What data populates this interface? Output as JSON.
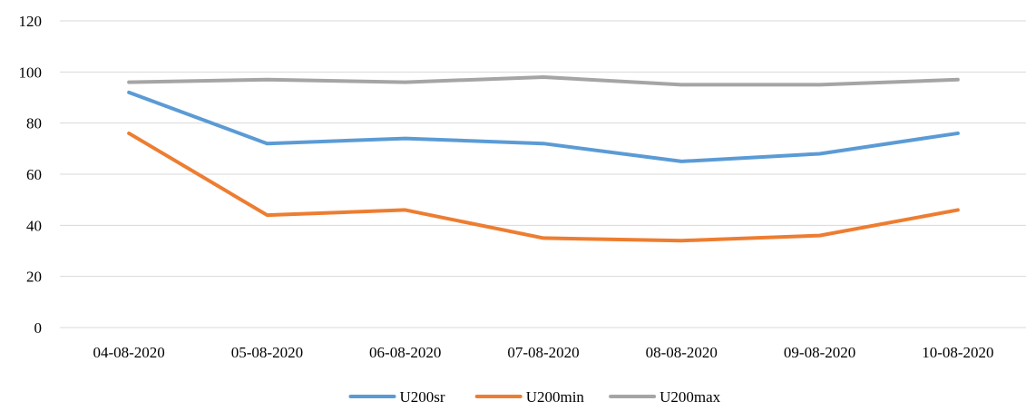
{
  "chart_data": {
    "type": "line",
    "title": "",
    "xlabel": "",
    "ylabel": "",
    "categories": [
      "04-08-2020",
      "05-08-2020",
      "06-08-2020",
      "07-08-2020",
      "08-08-2020",
      "09-08-2020",
      "10-08-2020"
    ],
    "ylim": [
      0,
      120
    ],
    "yticks": [
      "0",
      "20",
      "40",
      "60",
      "80",
      "100",
      "120"
    ],
    "grid": true,
    "legend_position": "bottom",
    "series": [
      {
        "name": "U200sr",
        "color": "#5b9bd5",
        "values": [
          92,
          72,
          74,
          72,
          65,
          68,
          76
        ]
      },
      {
        "name": "U200min",
        "color": "#ed7d31",
        "values": [
          76,
          44,
          46,
          35,
          34,
          36,
          46
        ]
      },
      {
        "name": "U200max",
        "color": "#a5a5a5",
        "values": [
          96,
          97,
          96,
          98,
          95,
          95,
          97
        ]
      }
    ]
  }
}
